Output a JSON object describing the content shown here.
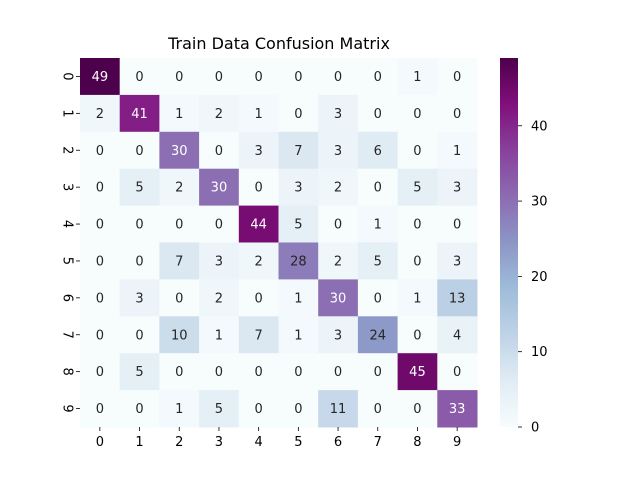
{
  "chart_data": {
    "type": "heatmap",
    "title": "Train Data Confusion Matrix",
    "xlabel": "",
    "ylabel": "",
    "x_categories": [
      "0",
      "1",
      "2",
      "3",
      "4",
      "5",
      "6",
      "7",
      "8",
      "9"
    ],
    "y_categories": [
      "0",
      "1",
      "2",
      "3",
      "4",
      "5",
      "6",
      "7",
      "8",
      "9"
    ],
    "values": [
      [
        49,
        0,
        0,
        0,
        0,
        0,
        0,
        0,
        1,
        0
      ],
      [
        2,
        41,
        1,
        2,
        1,
        0,
        3,
        0,
        0,
        0
      ],
      [
        0,
        0,
        30,
        0,
        3,
        7,
        3,
        6,
        0,
        1
      ],
      [
        0,
        5,
        2,
        30,
        0,
        3,
        2,
        0,
        5,
        3
      ],
      [
        0,
        0,
        0,
        0,
        44,
        5,
        0,
        1,
        0,
        0
      ],
      [
        0,
        0,
        7,
        3,
        2,
        28,
        2,
        5,
        0,
        3
      ],
      [
        0,
        3,
        0,
        2,
        0,
        1,
        30,
        0,
        1,
        13
      ],
      [
        0,
        0,
        10,
        1,
        7,
        1,
        3,
        24,
        0,
        4
      ],
      [
        0,
        5,
        0,
        0,
        0,
        0,
        0,
        0,
        45,
        0
      ],
      [
        0,
        0,
        1,
        5,
        0,
        0,
        11,
        0,
        0,
        33
      ]
    ],
    "colormap": "BuPu",
    "colorbar": {
      "range": [
        0,
        49
      ],
      "ticks": [
        0,
        10,
        20,
        30,
        40
      ]
    },
    "annotations": true,
    "grid": false,
    "legend": "colorbar-right"
  }
}
